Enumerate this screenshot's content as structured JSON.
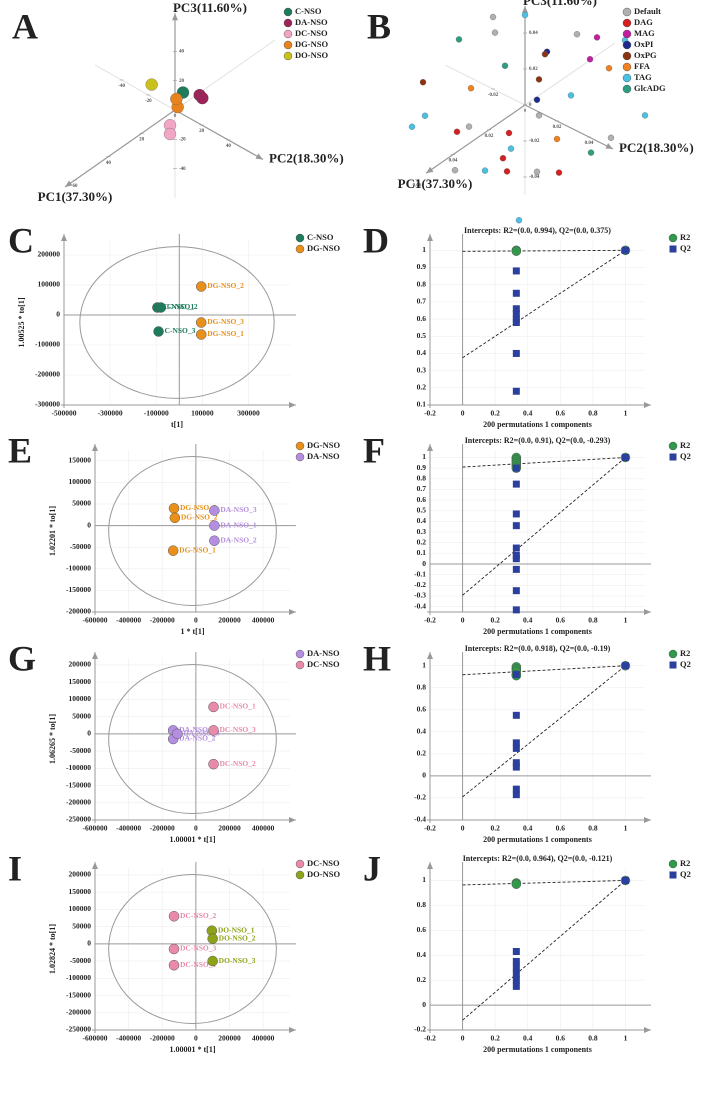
{
  "chart_data": [
    {
      "panel_label": "A",
      "type": "scatter3d",
      "xlabel": "PC1(37.30%)",
      "ylabel": "PC2(18.30%)",
      "zlabel": "PC3(11.60%)",
      "xlim": [
        -60,
        60
      ],
      "ylim": [
        -60,
        60
      ],
      "zlim": [
        -60,
        60
      ],
      "xticks": [
        0,
        20,
        40,
        60
      ],
      "yticks": [
        -40,
        -20,
        0,
        20,
        40
      ],
      "zticks": [
        -40,
        -20,
        0,
        20,
        40
      ],
      "series": [
        {
          "name": "C-NSO",
          "color": "#1e7b5c",
          "x": [
            0
          ],
          "y": [
            6
          ],
          "z": [
            15
          ]
        },
        {
          "name": "DA-NSO",
          "color": "#9c2458",
          "x": [
            -6,
            -6
          ],
          "y": [
            11,
            13
          ],
          "z": [
            11,
            10
          ]
        },
        {
          "name": "DC-NSO",
          "color": "#f2a6c6",
          "x": [
            3,
            3
          ],
          "y": [
            0,
            0
          ],
          "z": [
            -8,
            -14
          ]
        },
        {
          "name": "DG-NSO",
          "color": "#e8821c",
          "x": [
            0,
            0
          ],
          "y": [
            2,
            1
          ],
          "z": [
            3,
            8
          ]
        },
        {
          "name": "DO-NSO",
          "color": "#c9c21e",
          "x": [
            6
          ],
          "y": [
            -10
          ],
          "z": [
            17
          ]
        }
      ]
    },
    {
      "panel_label": "B",
      "type": "scatter3d",
      "xlabel": "PC1(37.30%)",
      "ylabel": "PC2(18.30%)",
      "zlabel": "PC3(11.60%)",
      "xlim": [
        -0.05,
        0.05
      ],
      "ylim": [
        -0.05,
        0.05
      ],
      "zlim": [
        -0.05,
        0.05
      ],
      "xticks": [
        0.02,
        0.04,
        0.06
      ],
      "yticks": [
        -0.02,
        0,
        0.02,
        0.04
      ],
      "zticks": [
        -0.04,
        -0.02,
        0,
        0.02,
        0.04
      ],
      "series": [
        {
          "name": "Default",
          "color": "#b0b0b0",
          "x": [
            0.01,
            -0.02,
            0.03,
            -0.01,
            0.02,
            -0.03,
            0.0,
            0.04
          ],
          "y": [
            0.02,
            0.01,
            -0.01,
            -0.03,
            0.03,
            0.02,
            -0.02,
            0.01
          ],
          "z": [
            0.01,
            0.03,
            -0.02,
            0.02,
            -0.01,
            -0.03,
            0.04,
            0.02
          ]
        },
        {
          "name": "DAG",
          "color": "#d42020",
          "x": [
            0.01,
            0.02,
            -0.01,
            0.03,
            0.0
          ],
          "y": [
            0.0,
            -0.02,
            0.01,
            0.02,
            -0.01
          ],
          "z": [
            -0.03,
            -0.01,
            -0.04,
            0.0,
            -0.02
          ]
        },
        {
          "name": "MAG",
          "color": "#c21fa0",
          "x": [
            -0.04,
            -0.045
          ],
          "y": [
            0.0,
            -0.01
          ],
          "z": [
            0.01,
            -0.01
          ]
        },
        {
          "name": "OxPI",
          "color": "#1f2a8c",
          "x": [
            -0.03,
            0.02
          ],
          "y": [
            -0.02,
            0.03
          ],
          "z": [
            0.0,
            0.03
          ]
        },
        {
          "name": "OxPG",
          "color": "#8a3412",
          "x": [
            0.01,
            -0.02,
            0.03
          ],
          "y": [
            0.02,
            -0.01,
            -0.03
          ],
          "z": [
            0.03,
            0.01,
            0.02
          ]
        },
        {
          "name": "FFA",
          "color": "#f08020",
          "x": [
            -0.02,
            0.03,
            0.0
          ],
          "y": [
            0.03,
            0.0,
            0.02
          ],
          "z": [
            0.02,
            0.03,
            -0.01
          ]
        },
        {
          "name": "TAG",
          "color": "#4cc0e4",
          "x": [
            0.04,
            -0.03,
            0.02,
            -0.04,
            0.01,
            -0.01,
            0.03,
            -0.02,
            0.045,
            0.0
          ],
          "y": [
            0.02,
            -0.03,
            -0.04,
            0.03,
            0.04,
            -0.02,
            0.03,
            0.04,
            -0.02,
            0.0
          ],
          "z": [
            0.0,
            0.03,
            -0.01,
            -0.02,
            0.03,
            -0.04,
            -0.03,
            0.04,
            0.01,
            0.05
          ]
        },
        {
          "name": "GlcADG",
          "color": "#2e9e82",
          "x": [
            0.02,
            -0.01,
            0.01
          ],
          "y": [
            0.01,
            0.03,
            -0.03
          ],
          "z": [
            0.04,
            -0.02,
            0.03
          ]
        }
      ]
    },
    {
      "panel_label": "C",
      "type": "scatter",
      "xlabel": "t[1]",
      "ylabel": "1.00525 * to[1]",
      "xlim": [
        -500000,
        480000
      ],
      "ylim": [
        -300000,
        250000
      ],
      "xticks": [
        -500000,
        -300000,
        -100000,
        100000,
        300000
      ],
      "yticks": [
        -300000,
        -200000,
        -100000,
        0,
        100000,
        200000
      ],
      "series": [
        {
          "name": "C-NSO",
          "color": "#1e7b5c",
          "x": [
            -95000,
            -80000,
            -90000
          ],
          "y": [
            25000,
            25000,
            -55000
          ],
          "labels": [
            "C-NSO_1",
            "C-NSO_2",
            "C-NSO_3"
          ]
        },
        {
          "name": "DG-NSO",
          "color": "#e8901a",
          "x": [
            95000,
            95000,
            95000
          ],
          "y": [
            95000,
            -25000,
            -65000
          ],
          "labels": [
            "DG-NSO_2",
            "DG-NSO_3",
            "DG-NSO_1"
          ]
        }
      ]
    },
    {
      "panel_label": "D",
      "type": "permutation",
      "title": "Intercepts: R2=(0.0, 0.994), Q2=(0.0, 0.375)",
      "xlabel": "200 permutations 1 components",
      "xlim": [
        -0.2,
        1.12
      ],
      "ylim": [
        0.1,
        1.06
      ],
      "xticks": [
        -0.2,
        0,
        0.2,
        0.4,
        0.6,
        0.8,
        1
      ],
      "yticks": [
        0.1,
        0.2,
        0.3,
        0.4,
        0.5,
        0.6,
        0.7,
        0.8,
        0.9,
        1
      ],
      "series": [
        {
          "name": "R2",
          "color": "#2e9a4a",
          "marker": "circle",
          "intercept": 0.994,
          "x": [
            0.33,
            0.33,
            1
          ],
          "y": [
            1.0,
            0.995,
            1
          ]
        },
        {
          "name": "Q2",
          "color": "#2b3f9e",
          "marker": "square",
          "intercept": 0.375,
          "x": [
            0.33,
            0.33,
            0.33,
            0.33,
            0.33,
            0.33,
            0.33,
            0.33,
            1
          ],
          "y": [
            0.88,
            0.75,
            0.66,
            0.63,
            0.6,
            0.58,
            0.4,
            0.18,
            1
          ]
        }
      ]
    },
    {
      "panel_label": "E",
      "type": "scatter",
      "xlabel": "1 * t[1]",
      "ylabel": "1.02201 * to[1]",
      "xlim": [
        -600000,
        560000
      ],
      "ylim": [
        -200000,
        175000
      ],
      "xticks": [
        -600000,
        -400000,
        -200000,
        0,
        200000,
        400000
      ],
      "yticks": [
        -200000,
        -150000,
        -100000,
        -50000,
        0,
        50000,
        100000,
        150000
      ],
      "series": [
        {
          "name": "DG-NSO",
          "color": "#e8901a",
          "x": [
            -130000,
            -125000,
            -135000
          ],
          "y": [
            40000,
            18000,
            -58000
          ],
          "labels": [
            "DG-NSO_3",
            "DG-NSO_2",
            "DG-NSO_1"
          ]
        },
        {
          "name": "DA-NSO",
          "color": "#b48ee0",
          "x": [
            110000,
            110000,
            110000
          ],
          "y": [
            35000,
            0,
            -35000
          ],
          "labels": [
            "DA-NSO_3",
            "DA-NSO_1",
            "DA-NSO_2"
          ]
        }
      ]
    },
    {
      "panel_label": "F",
      "type": "permutation",
      "title": "Intercepts: R2=(0.0, 0.91), Q2=(0.0, -0.293)",
      "xlabel": "200 permutations 1 components",
      "xlim": [
        -0.2,
        1.12
      ],
      "ylim": [
        -0.45,
        1.07
      ],
      "xticks": [
        -0.2,
        0,
        0.2,
        0.4,
        0.6,
        0.8,
        1
      ],
      "yticks": [
        -0.4,
        -0.3,
        -0.2,
        -0.1,
        0,
        0.1,
        0.2,
        0.3,
        0.4,
        0.5,
        0.6,
        0.7,
        0.8,
        0.9,
        1
      ],
      "series": [
        {
          "name": "R2",
          "color": "#2e9a4a",
          "marker": "circle",
          "intercept": 0.91,
          "x": [
            0.33,
            0.33,
            0.33,
            0.33,
            0.33,
            0.33,
            1
          ],
          "y": [
            1.0,
            0.98,
            0.96,
            0.94,
            0.92,
            0.9,
            1
          ]
        },
        {
          "name": "Q2",
          "color": "#2b3f9e",
          "marker": "square",
          "intercept": -0.293,
          "x": [
            0.33,
            0.33,
            0.33,
            0.33,
            0.33,
            0.33,
            0.33,
            0.33,
            0.33,
            0.33,
            1
          ],
          "y": [
            0.9,
            0.75,
            0.47,
            0.36,
            0.15,
            0.08,
            0.05,
            -0.05,
            -0.25,
            -0.43,
            1
          ]
        }
      ]
    },
    {
      "panel_label": "G",
      "type": "scatter",
      "xlabel": "1.00001 * t[1]",
      "ylabel": "1.06265 * to[1]",
      "xlim": [
        -600000,
        560000
      ],
      "ylim": [
        -250000,
        220000
      ],
      "xticks": [
        -600000,
        -400000,
        -200000,
        0,
        200000,
        400000
      ],
      "yticks": [
        -250000,
        -200000,
        -150000,
        -100000,
        -50000,
        0,
        50000,
        100000,
        150000,
        200000
      ],
      "series": [
        {
          "name": "DA-NSO",
          "color": "#b48ee0",
          "x": [
            -135000,
            -135000,
            -110000
          ],
          "y": [
            10000,
            -15000,
            0
          ],
          "labels": [
            "DA-NSO_1",
            "DA-NSO_2",
            "DA-NSO_3"
          ]
        },
        {
          "name": "DC-NSO",
          "color": "#e88aa8",
          "x": [
            105000,
            105000,
            105000
          ],
          "y": [
            78000,
            10000,
            -88000
          ],
          "labels": [
            "DC-NSO_1",
            "DC-NSO_3",
            "DC-NSO_2"
          ]
        }
      ]
    },
    {
      "panel_label": "H",
      "type": "permutation",
      "title": "Intercepts: R2=(0.0, 0.918), Q2=(0.0, -0.19)",
      "xlabel": "200 permutations 1 components",
      "xlim": [
        -0.2,
        1.12
      ],
      "ylim": [
        -0.4,
        1.07
      ],
      "xticks": [
        -0.2,
        0,
        0.2,
        0.4,
        0.6,
        0.8,
        1
      ],
      "yticks": [
        -0.4,
        -0.2,
        0,
        0.2,
        0.4,
        0.6,
        0.8,
        1
      ],
      "series": [
        {
          "name": "R2",
          "color": "#2e9a4a",
          "marker": "circle",
          "intercept": 0.918,
          "x": [
            0.33,
            0.33,
            0.33,
            0.33,
            0.33,
            1
          ],
          "y": [
            0.99,
            0.97,
            0.95,
            0.92,
            0.91,
            1
          ]
        },
        {
          "name": "Q2",
          "color": "#2b3f9e",
          "marker": "square",
          "intercept": -0.19,
          "x": [
            0.33,
            0.33,
            0.33,
            0.33,
            0.33,
            0.33,
            0.33,
            0.33,
            1
          ],
          "y": [
            0.92,
            0.55,
            0.3,
            0.25,
            0.12,
            0.08,
            -0.12,
            -0.17,
            1
          ]
        }
      ]
    },
    {
      "panel_label": "I",
      "type": "scatter",
      "xlabel": "1.00001 * t[1]",
      "ylabel": "1.02824 * to[1]",
      "xlim": [
        -600000,
        560000
      ],
      "ylim": [
        -250000,
        220000
      ],
      "xticks": [
        -600000,
        -400000,
        -200000,
        0,
        200000,
        400000
      ],
      "yticks": [
        -250000,
        -200000,
        -150000,
        -100000,
        -50000,
        0,
        50000,
        100000,
        150000,
        200000
      ],
      "series": [
        {
          "name": "DC-NSO",
          "color": "#e88aa8",
          "x": [
            -130000,
            -130000,
            -130000
          ],
          "y": [
            80000,
            -15000,
            -62000
          ],
          "labels": [
            "DC-NSO_2",
            "DC-NSO_3",
            "DC-NSO_1"
          ]
        },
        {
          "name": "DO-NSO",
          "color": "#8fa31a",
          "x": [
            95000,
            100000,
            100000
          ],
          "y": [
            38000,
            15000,
            -50000
          ],
          "labels": [
            "DO-NSO_1",
            "DO-NSO_2",
            "DO-NSO_3"
          ]
        }
      ]
    },
    {
      "panel_label": "J",
      "type": "permutation",
      "title": "Intercepts: R2=(0.0, 0.964), Q2=(0.0, -0.121)",
      "xlabel": "200 permutations 1 components",
      "xlim": [
        -0.2,
        1.12
      ],
      "ylim": [
        -0.2,
        1.1
      ],
      "xticks": [
        -0.2,
        0,
        0.2,
        0.4,
        0.6,
        0.8,
        1
      ],
      "yticks": [
        -0.2,
        0,
        0.2,
        0.4,
        0.6,
        0.8,
        1
      ],
      "series": [
        {
          "name": "R2",
          "color": "#2e9a4a",
          "marker": "circle",
          "intercept": 0.964,
          "x": [
            0.33,
            0.33,
            1
          ],
          "y": [
            0.98,
            0.97,
            1
          ]
        },
        {
          "name": "Q2",
          "color": "#2b3f9e",
          "marker": "square",
          "intercept": -0.121,
          "x": [
            0.33,
            0.33,
            0.33,
            0.33,
            0.33,
            0.33,
            1
          ],
          "y": [
            0.43,
            0.35,
            0.3,
            0.25,
            0.2,
            0.15,
            1
          ]
        }
      ]
    }
  ]
}
